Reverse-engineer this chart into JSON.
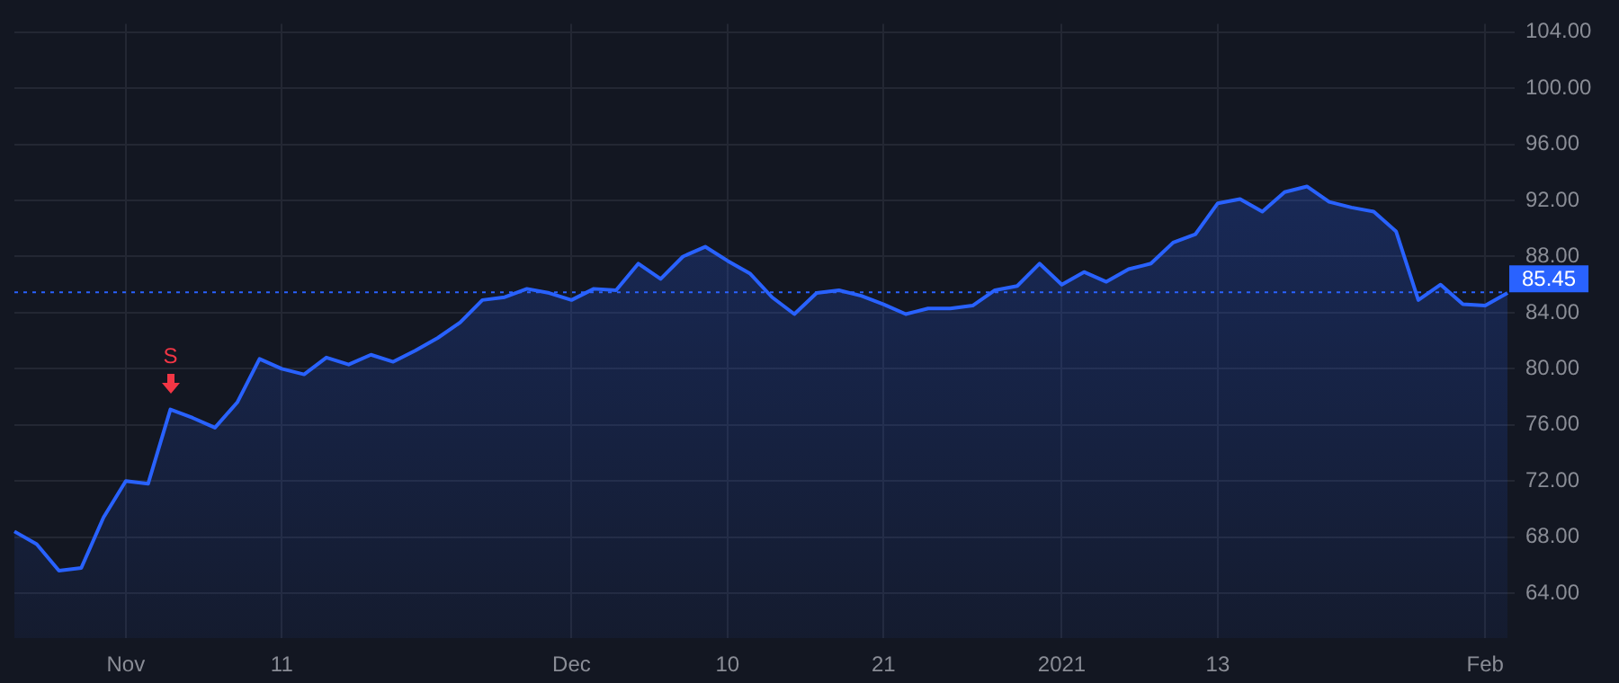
{
  "chart_data": {
    "type": "area",
    "categories": [
      null,
      null,
      null,
      null,
      null,
      "Nov",
      null,
      null,
      null,
      null,
      null,
      null,
      "11",
      null,
      null,
      null,
      null,
      null,
      null,
      null,
      null,
      null,
      null,
      null,
      null,
      "Dec",
      null,
      null,
      null,
      null,
      null,
      null,
      "10",
      null,
      null,
      null,
      null,
      null,
      null,
      "21",
      null,
      null,
      null,
      null,
      null,
      null,
      null,
      "2021",
      null,
      null,
      null,
      null,
      null,
      null,
      "13",
      null,
      null,
      null,
      null,
      null,
      null,
      null,
      null,
      null,
      null,
      null,
      "Feb",
      null
    ],
    "series": [
      {
        "color": "#2962ff",
        "values": [
          68.4,
          67.5,
          65.6,
          65.8,
          69.4,
          72.0,
          71.8,
          77.1,
          76.5,
          75.8,
          77.6,
          80.7,
          80.0,
          79.6,
          80.8,
          80.3,
          81.0,
          80.5,
          81.3,
          82.2,
          83.3,
          84.9,
          85.1,
          85.7,
          85.4,
          84.9,
          85.7,
          85.6,
          87.5,
          86.4,
          88.0,
          88.7,
          87.7,
          86.8,
          85.1,
          83.9,
          85.4,
          85.6,
          85.2,
          84.6,
          83.9,
          84.3,
          84.3,
          84.5,
          85.6,
          85.9,
          87.5,
          86.0,
          86.9,
          86.2,
          87.1,
          87.5,
          89.0,
          89.6,
          91.8,
          92.1,
          91.2,
          92.6,
          93.0,
          91.9,
          91.5,
          91.2,
          89.8,
          84.9,
          86.0,
          84.6,
          84.5,
          85.4
        ]
      }
    ],
    "ylim": [
      60.8,
      104.6
    ],
    "yticks": [
      {
        "value": 64,
        "label": "64.00"
      },
      {
        "value": 68,
        "label": "68.00"
      },
      {
        "value": 72,
        "label": "72.00"
      },
      {
        "value": 76,
        "label": "76.00"
      },
      {
        "value": 80,
        "label": "80.00"
      },
      {
        "value": 84,
        "label": "84.00"
      },
      {
        "value": 88,
        "label": "88.00"
      },
      {
        "value": 92,
        "label": "92.00"
      },
      {
        "value": 96,
        "label": "96.00"
      },
      {
        "value": 100,
        "label": "100.00"
      },
      {
        "value": 104,
        "label": "104.00"
      }
    ],
    "ref_lines": [
      {
        "axis": "y",
        "value": 85.45,
        "label": "85.45",
        "color": "#2962ff",
        "line_style": "dotted"
      }
    ],
    "annotations": [
      {
        "text": "S",
        "y": 77.1
      }
    ],
    "grid": true,
    "legend": false
  }
}
